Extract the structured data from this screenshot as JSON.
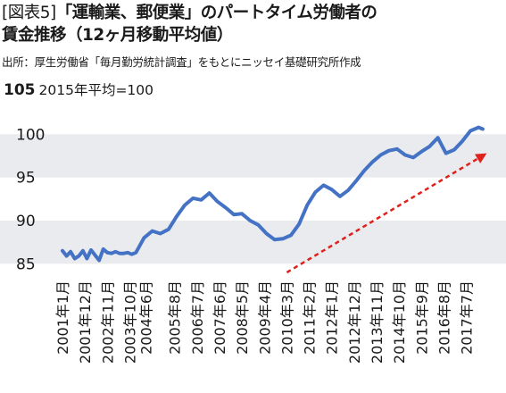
{
  "header": {
    "tag": "[図表5]",
    "title_line1": "「運輸業、郵便業」のパートタイム労働者の",
    "title_line2": "賃金推移（12ヶ月移動平均値）",
    "source": "出所：厚生労働省「毎月勤労統計調査」をもとにニッセイ基礎研究所作成"
  },
  "chart_data": {
    "type": "line",
    "title": "「運輸業、郵便業」のパートタイム労働者の賃金推移（12ヶ月移動平均値）",
    "index_note": "2015年平均=100",
    "top_tick": "105",
    "ylim": [
      84,
      105
    ],
    "y_ticks": [
      85,
      90,
      95,
      100
    ],
    "bands": [
      [
        85,
        90
      ],
      [
        95,
        100
      ]
    ],
    "colors": {
      "line": "#4472c4",
      "trend": "#e0201a",
      "band": "#e9ebee"
    },
    "x_labels": [
      "2001年1月",
      "2001年12月",
      "2002年11月",
      "2003年10月",
      "2004年6月",
      "2005年8月",
      "2006年7月",
      "2007年6月",
      "2008年5月",
      "2009年4月",
      "2010年3月",
      "2011年2月",
      "2012年1月",
      "2012年12月",
      "2013年11月",
      "2014年10月",
      "2015年9月",
      "2016年8月",
      "2017年7月"
    ],
    "x_label_months": [
      0,
      11,
      22,
      33,
      41,
      55,
      66,
      77,
      88,
      99,
      110,
      121,
      132,
      143,
      154,
      165,
      176,
      187,
      198
    ],
    "series": [
      {
        "months": [
          0,
          2,
          4,
          6,
          8,
          10,
          12,
          14,
          16,
          18,
          20,
          22,
          24,
          26,
          28,
          30,
          32,
          34,
          36,
          40,
          44,
          48,
          52,
          56,
          60,
          64,
          68,
          72,
          76,
          80,
          84,
          88,
          92,
          96,
          100,
          104,
          108,
          112,
          116,
          120,
          124,
          128,
          132,
          136,
          140,
          144,
          148,
          152,
          156,
          160,
          164,
          168,
          172,
          176,
          180,
          184,
          188,
          192,
          196,
          200,
          204,
          206
        ],
        "values": [
          86.5,
          85.9,
          86.4,
          85.6,
          85.9,
          86.5,
          85.6,
          86.6,
          86.0,
          85.4,
          86.7,
          86.3,
          86.2,
          86.4,
          86.2,
          86.2,
          86.3,
          86.1,
          86.3,
          88.0,
          88.8,
          88.5,
          89.0,
          90.5,
          91.8,
          92.6,
          92.4,
          93.2,
          92.2,
          91.5,
          90.7,
          90.8,
          90.0,
          89.5,
          88.5,
          87.8,
          87.9,
          88.3,
          89.6,
          91.8,
          93.3,
          94.1,
          93.6,
          92.8,
          93.5,
          94.6,
          95.8,
          96.8,
          97.6,
          98.1,
          98.3,
          97.6,
          97.3,
          98.0,
          98.6,
          99.6,
          97.8,
          98.2,
          99.2,
          100.4,
          100.8,
          100.6
        ]
      }
    ],
    "trend": {
      "from": [
        110,
        84
      ],
      "to": [
        208,
        97.8
      ]
    }
  }
}
